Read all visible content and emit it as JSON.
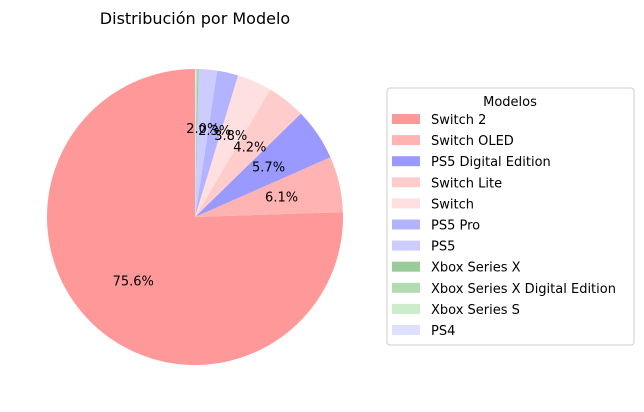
{
  "chart_data": {
    "type": "pie",
    "title": "Distribución por Modelo",
    "legend_title": "Modelos",
    "legend_position": "right",
    "start_angle_deg": 90,
    "direction": "counterclockwise",
    "slices": [
      {
        "label": "Switch 2",
        "value": 75.6,
        "pct_label": "75.6%",
        "color": "#ff9999"
      },
      {
        "label": "Switch OLED",
        "value": 6.1,
        "pct_label": "6.1%",
        "color": "#ffb3b3"
      },
      {
        "label": "PS5 Digital Edition",
        "value": 5.7,
        "pct_label": "5.7%",
        "color": "#9999ff"
      },
      {
        "label": "Switch Lite",
        "value": 4.2,
        "pct_label": "4.2%",
        "color": "#ffcccc"
      },
      {
        "label": "Switch",
        "value": 3.8,
        "pct_label": "3.8%",
        "color": "#ffe0e0"
      },
      {
        "label": "PS5 Pro",
        "value": 2.3,
        "pct_label": "2.3%",
        "color": "#b3b3ff"
      },
      {
        "label": "PS5",
        "value": 2.0,
        "pct_label": "2.0%",
        "color": "#ccccff"
      },
      {
        "label": "Xbox Series X",
        "value": 0.15,
        "pct_label": "",
        "color": "#99cc99"
      },
      {
        "label": "Xbox Series X Digital Edition",
        "value": 0.1,
        "pct_label": "",
        "color": "#b3dbb3"
      },
      {
        "label": "Xbox Series S",
        "value": 0.08,
        "pct_label": "",
        "color": "#cceccc"
      },
      {
        "label": "PS4",
        "value": 0.07,
        "pct_label": "",
        "color": "#dde0ff"
      }
    ]
  }
}
